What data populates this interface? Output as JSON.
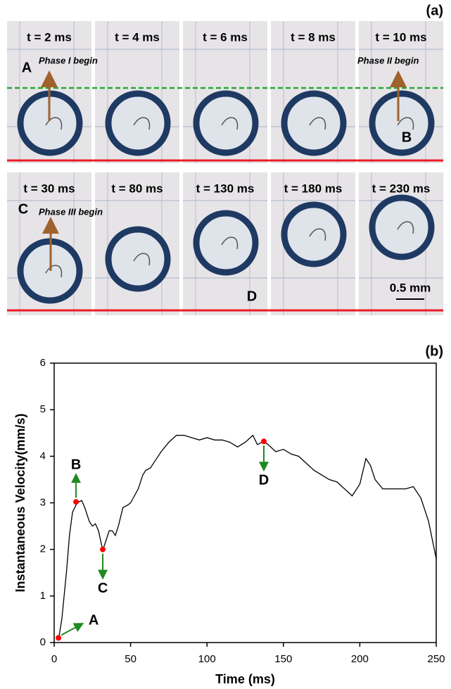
{
  "panel_a": {
    "label": "(a)",
    "frames": [
      "t = 2 ms",
      "t = 4 ms",
      "t = 6 ms",
      "t = 8 ms",
      "t = 10 ms",
      "t = 30 ms",
      "t = 80 ms",
      "t = 130 ms",
      "t = 180 ms",
      "t = 230 ms"
    ],
    "annotations": [
      "A",
      "Phase I begin",
      "Phase II begin",
      "B",
      "C",
      "Phase III begin",
      "D"
    ],
    "scale_bar": "0.5 mm"
  },
  "chart_data": {
    "type": "line",
    "label": "(b)",
    "x_label": "Time (ms)",
    "y_label": "Instantaneous Velocity(mm/s)",
    "xlim": [
      0,
      250
    ],
    "xticks": [
      0,
      50,
      100,
      150,
      200,
      250
    ],
    "ylim": [
      0,
      6
    ],
    "yticks": [
      0,
      1,
      2,
      3,
      4,
      5,
      6
    ],
    "x": [
      3,
      5,
      8,
      10,
      12,
      15,
      18,
      20,
      23,
      25,
      27,
      29,
      31,
      32,
      34,
      36,
      38,
      40,
      42,
      45,
      48,
      50,
      55,
      58,
      60,
      63,
      66,
      70,
      75,
      80,
      85,
      90,
      95,
      100,
      105,
      110,
      115,
      120,
      125,
      130,
      133,
      137,
      140,
      145,
      150,
      155,
      160,
      165,
      170,
      175,
      180,
      185,
      190,
      195,
      200,
      204,
      207,
      210,
      215,
      220,
      225,
      230,
      235,
      240,
      245,
      250
    ],
    "series": [
      {
        "color": "#000000",
        "values": [
          0.1,
          0.5,
          1.5,
          2.3,
          2.8,
          3.0,
          3.05,
          2.9,
          2.6,
          2.5,
          2.55,
          2.4,
          2.1,
          2.0,
          2.2,
          2.4,
          2.4,
          2.3,
          2.5,
          2.9,
          2.95,
          3.0,
          3.3,
          3.6,
          3.7,
          3.75,
          3.9,
          4.1,
          4.3,
          4.45,
          4.45,
          4.4,
          4.35,
          4.4,
          4.35,
          4.35,
          4.3,
          4.2,
          4.3,
          4.45,
          4.25,
          4.32,
          4.25,
          4.1,
          4.15,
          4.05,
          4.0,
          3.85,
          3.7,
          3.6,
          3.5,
          3.45,
          3.3,
          3.15,
          3.4,
          3.95,
          3.8,
          3.5,
          3.3,
          3.3,
          3.3,
          3.3,
          3.35,
          3.1,
          2.6,
          1.8
        ]
      }
    ],
    "points": {
      "color": "#ff0000",
      "labels": [
        "A",
        "B",
        "C",
        "D"
      ],
      "x": [
        2.8,
        14.3,
        31.8,
        137.2
      ],
      "values": [
        0.1,
        3.02,
        2.0,
        4.32
      ]
    }
  }
}
